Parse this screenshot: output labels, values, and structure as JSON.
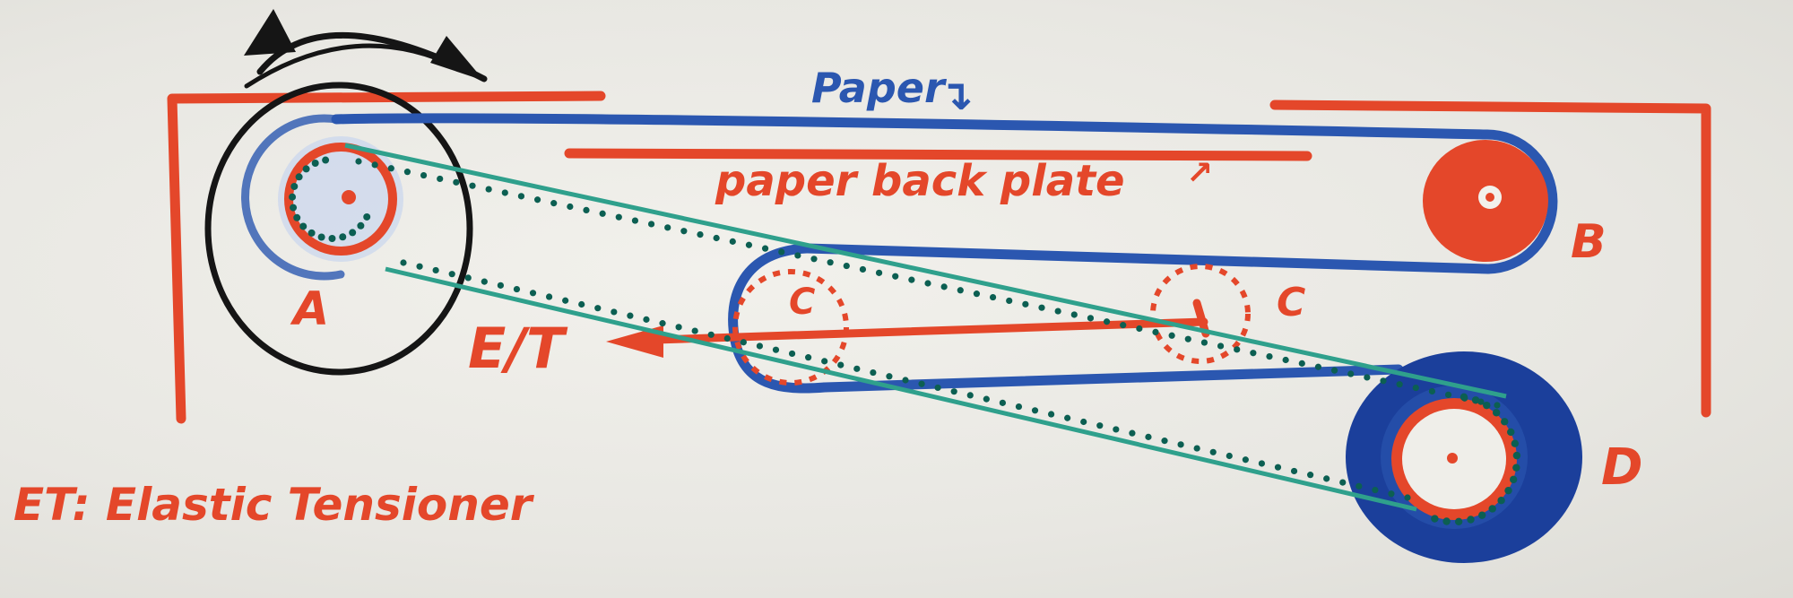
{
  "labels": {
    "paper": "Paper",
    "back_plate": "paper back plate",
    "roller_a": "A",
    "roller_b": "B",
    "roller_c_left": "C",
    "roller_c_right": "C",
    "roller_d": "D",
    "et_marker": "E/T",
    "legend": "ET: Elastic Tensioner"
  },
  "colors": {
    "frame_red": "#e4472a",
    "paper_blue": "#2b57b0",
    "chain_teal": "#2fa08c",
    "chain_dots": "#0c5f52",
    "arrow_black": "#151515",
    "roll_navy": "#1b3f9b"
  },
  "icons": {
    "rotation": "curved-double-arrow-icon",
    "direction": "arrow-icon"
  }
}
